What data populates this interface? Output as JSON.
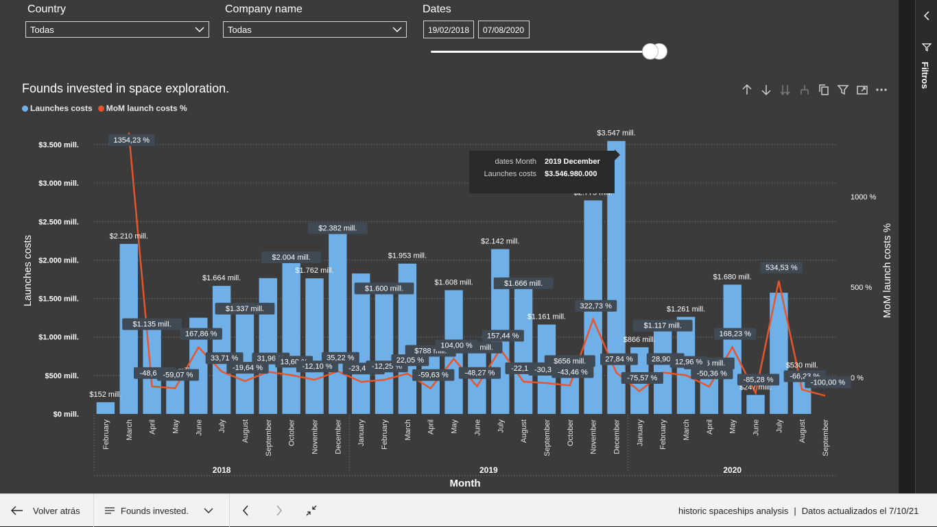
{
  "slicers": {
    "country": {
      "title": "Country",
      "value": "Todas"
    },
    "company": {
      "title": "Company name",
      "value": "Todas"
    },
    "dates": {
      "title": "Dates",
      "start": "19/02/2018",
      "end": "07/08/2020"
    }
  },
  "chart_data": {
    "type": "bar",
    "title": "Founds invested in space exploration.",
    "xlabel": "Month",
    "ylabel": "Launches costs",
    "y2label": "MoM launch costs %",
    "legend_position": "top-left",
    "grid": true,
    "ylim": [
      0,
      3700
    ],
    "y2lim": [
      -150,
      1250
    ],
    "yticks": [
      "$0 mill.",
      "$500 mill.",
      "$1.000 mill.",
      "$1.500 mill.",
      "$2.000 mill.",
      "$2.500 mill.",
      "$3.000 mill.",
      "$3.500 mill."
    ],
    "ytick_values": [
      0,
      500,
      1000,
      1500,
      2000,
      2500,
      3000,
      3500
    ],
    "y2ticks": [
      "0 %",
      "500 %",
      "1000 %"
    ],
    "y2tick_values": [
      0,
      500,
      1000
    ],
    "years": [
      {
        "label": "2018",
        "start": 0,
        "end": 10
      },
      {
        "label": "2019",
        "start": 11,
        "end": 22
      },
      {
        "label": "2020",
        "start": 23,
        "end": 31
      }
    ],
    "categories": [
      "February",
      "March",
      "April",
      "May",
      "June",
      "July",
      "August",
      "September",
      "October",
      "November",
      "December",
      "January",
      "February",
      "March",
      "April",
      "May",
      "June",
      "July",
      "August",
      "September",
      "October",
      "November",
      "December",
      "January",
      "February",
      "March",
      "April",
      "May",
      "June",
      "July",
      "August",
      "September"
    ],
    "series": [
      {
        "name": "Launches costs",
        "color": "#6fb0e8",
        "values": [
          152,
          2210,
          1135,
          465,
          1250,
          1664,
          1337,
          1765,
          2004,
          1762,
          2382,
          1825,
          1600,
          1953,
          788,
          1608,
          832,
          2142,
          1666,
          1161,
          656,
          2775,
          3547,
          866,
          1117,
          1261,
          626,
          1680,
          247,
          1575,
          530,
          0
        ],
        "labels": [
          "$152 mill.",
          "$2.210 mill.",
          "$1.135 mill.",
          "$465 mill.",
          "",
          "$1.664 mill.",
          "$1.337 mill.",
          "",
          "$2.004 mill.",
          "$1.762 mill.",
          "$2.382 mill.",
          "",
          "$1.600 mill.",
          "$1.953 mill.",
          "$788 mill.",
          "$1.608 mill.",
          "$832 mill.",
          "$2.142 mill.",
          "$1.666 mill.",
          "$1.161 mill.",
          "$656 mill.",
          "$2.775 mill.",
          "$3.547 mill.",
          "$866 mill.",
          "$1.117 mill.",
          "$1.261 mill.",
          "$626 mill.",
          "$1.680 mill.",
          "$247 mill.",
          "",
          "$530 mill.",
          ""
        ]
      },
      {
        "name": "MoM launch costs %",
        "color": "#e8552b",
        "values": [
          null,
          1354.23,
          -48.66,
          -59.07,
          167.86,
          33.71,
          -19.64,
          31.96,
          13.6,
          -12.1,
          35.22,
          -23.46,
          -12.25,
          22.05,
          -59.63,
          104.0,
          -48.27,
          157.44,
          -22.19,
          -30.35,
          -43.46,
          322.73,
          27.84,
          -75.57,
          28.9,
          12.96,
          -50.36,
          168.23,
          -85.28,
          534.53,
          -66.23,
          -100.0
        ],
        "labels": [
          "",
          "1354,23 %",
          "-48,66 %",
          "-59,07 %",
          "167,86 %",
          "33,71 %",
          "-19,64 %",
          "31,96 %",
          "13,60 %",
          "-12,10 %",
          "35,22 %",
          "-23,46 %",
          "-12,25 %",
          "22,05 %",
          "-59,63 %",
          "104,00 %",
          "-48,27 %",
          "157,44 %",
          "-22,19 %",
          "-30,35 %",
          "-43,46 %",
          "322,73 %",
          "27,84 %",
          "-75,57 %",
          "28,90 %",
          "12,96 %",
          "-50,36 %",
          "168,23 %",
          "-85,28 %",
          "534,53 %",
          "-66,23 %",
          "-100,00 %"
        ]
      }
    ]
  },
  "tooltip": {
    "month_key": "dates Month",
    "month_value": "2019 December",
    "cost_key": "Launches costs",
    "cost_value": "$3.546.980.000"
  },
  "filters_pane": {
    "label": "Filtros"
  },
  "bottom_bar": {
    "back_label": "Volver atrás",
    "page_label": "Founds invested.",
    "report_name": "historic spaceships analysis",
    "separator": "|",
    "updated": "Datos actualizados el 7/10/21"
  },
  "colors": {
    "bar": "#6fb0e8",
    "line": "#e8552b",
    "background": "#3b3b3b"
  }
}
